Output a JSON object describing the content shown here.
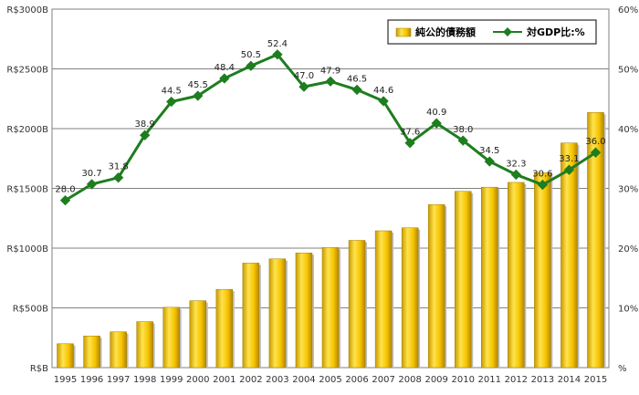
{
  "chart_data": {
    "type": "bar",
    "categories": [
      "1995",
      "1996",
      "1997",
      "1998",
      "1999",
      "2000",
      "2001",
      "2002",
      "2003",
      "2004",
      "2005",
      "2006",
      "2007",
      "2008",
      "2009",
      "2010",
      "2011",
      "2012",
      "2013",
      "2014",
      "2015"
    ],
    "series": [
      {
        "name": "純公的債務額",
        "type": "bar",
        "axis": "left",
        "color": "#f2c200",
        "values": [
          200,
          265,
          300,
          385,
          505,
          560,
          655,
          875,
          910,
          960,
          1005,
          1065,
          1145,
          1170,
          1365,
          1475,
          1510,
          1550,
          1630,
          1880,
          2135
        ]
      },
      {
        "name": "対GDP比:%",
        "type": "line",
        "axis": "right",
        "color": "#1e7d1e",
        "values": [
          28.0,
          30.7,
          31.8,
          38.9,
          44.5,
          45.5,
          48.4,
          50.5,
          52.4,
          47.0,
          47.9,
          46.5,
          44.6,
          37.6,
          40.9,
          38.0,
          34.5,
          32.3,
          30.6,
          33.1,
          36.0
        ],
        "labels": [
          "28.0",
          "30.7",
          "31.8",
          "38.9",
          "44.5",
          "45.5",
          "48.4",
          "50.5",
          "52.4",
          "47.0",
          "47.9",
          "46.5",
          "44.6",
          "37.6",
          "40.9",
          "38.0",
          "34.5",
          "32.3",
          "30.6",
          "33.1",
          "36.0"
        ]
      }
    ],
    "y_left": {
      "min": 0,
      "max": 3000,
      "ticks": [
        "R$B",
        "R$500B",
        "R$1000B",
        "R$1500B",
        "R$2000B",
        "R$2500B",
        "R$3000B"
      ]
    },
    "y_right": {
      "min": 0,
      "max": 60,
      "ticks": [
        "%",
        "10%",
        "20%",
        "30%",
        "40%",
        "50%",
        "60%"
      ]
    },
    "grid": true,
    "legend": {
      "position": "top-right"
    }
  }
}
